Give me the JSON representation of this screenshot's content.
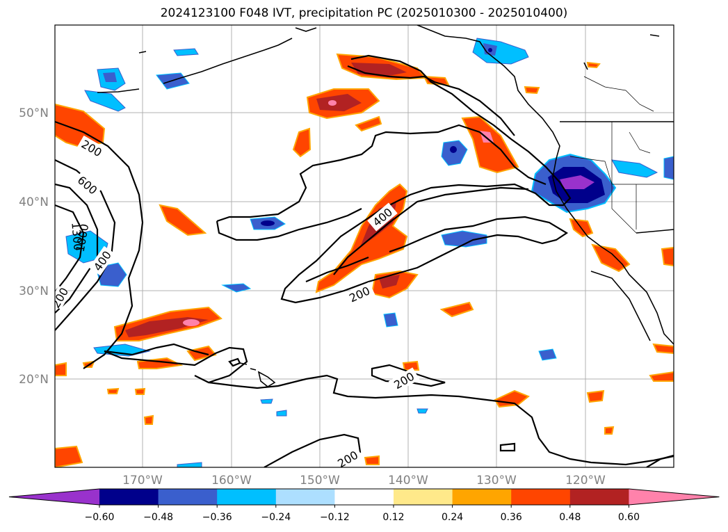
{
  "title": "2024123100 F048 IVT, precipitation PC (2025010300 - 2025010400)",
  "map": {
    "lat_ticks": [
      "50°N",
      "40°N",
      "30°N",
      "20°N"
    ],
    "lon_ticks": [
      "170°W",
      "160°W",
      "150°W",
      "140°W",
      "130°W",
      "120°W"
    ],
    "gridlines": true,
    "ivt_contour_labels": [
      "200",
      "600",
      "1300",
      "1000",
      "400",
      "400",
      "200",
      "200",
      "200",
      "200"
    ]
  },
  "colorbar": {
    "extend": "both",
    "tick_labels": [
      "−0.60",
      "−0.48",
      "−0.36",
      "−0.24",
      "−0.12",
      "0.12",
      "0.24",
      "0.36",
      "0.48",
      "0.60"
    ],
    "colors": [
      "#9932CC",
      "#00008B",
      "#3A5FCD",
      "#00BFFF",
      "#ADDFFF",
      "#FFFFFF",
      "#FFE98A",
      "#FFA500",
      "#FF4500",
      "#B22222",
      "#FF82AB"
    ]
  }
}
